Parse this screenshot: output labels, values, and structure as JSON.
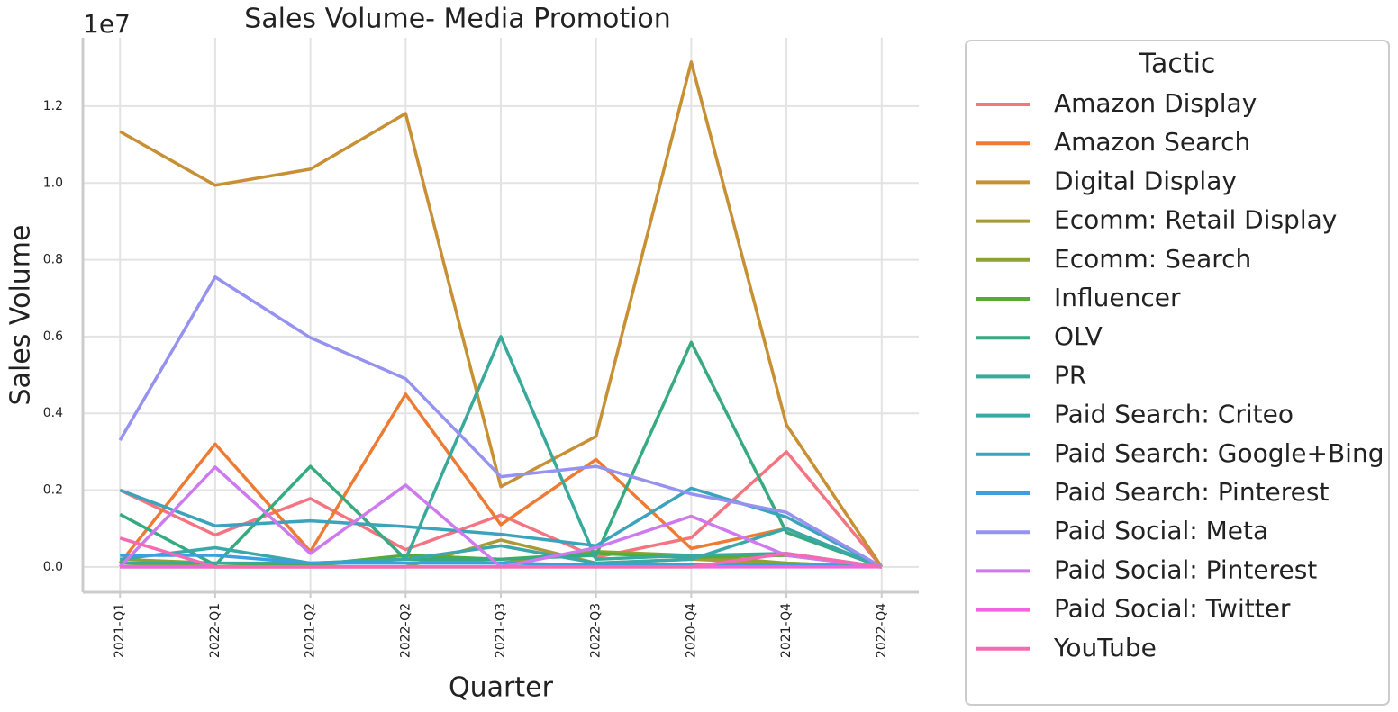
{
  "chart_data": {
    "type": "line",
    "title": "Sales Volume- Media Promotion",
    "x_label": "Quarter",
    "y_label": "Sales Volume",
    "y_offset_label": "1e7",
    "legend_title": "Tactic",
    "legend": "outside-right",
    "grid": true,
    "categories": [
      "2021-Q1",
      "2022-Q1",
      "2021-Q2",
      "2022-Q2",
      "2021-Q3",
      "2022-Q3",
      "2020-Q4",
      "2021-Q4",
      "2022-Q4"
    ],
    "ylim": [
      -0.066,
      1.378
    ],
    "yticks": [
      {
        "value": 0,
        "label": "0.0"
      },
      0.2,
      0.4,
      0.6,
      0.8,
      {
        "value": 1,
        "label": "1.0"
      },
      1.2
    ],
    "series": [
      {
        "name": "Amazon Display",
        "color": "#f37581",
        "values": [
          0.2,
          0.083,
          0.178,
          0.045,
          0.135,
          0.025,
          0.076,
          0.3,
          0.0
        ]
      },
      {
        "name": "Amazon Search",
        "color": "#ee7b33",
        "values": [
          0.01,
          0.32,
          0.04,
          0.45,
          0.11,
          0.28,
          0.048,
          0.1,
          0.0
        ]
      },
      {
        "name": "Digital Display",
        "color": "#c79035",
        "values": [
          1.134,
          0.994,
          1.036,
          1.181,
          0.209,
          0.34,
          1.315,
          0.37,
          0.0
        ]
      },
      {
        "name": "Ecomm: Retail Display",
        "color": "#a89b37",
        "values": [
          0.01,
          0.0,
          0.0,
          0.0,
          0.07,
          0.01,
          0.02,
          0.01,
          0.0
        ]
      },
      {
        "name": "Ecomm: Search",
        "color": "#8da233",
        "values": [
          0.02,
          0.01,
          0.005,
          0.02,
          0.01,
          0.04,
          0.03,
          0.01,
          0.0
        ]
      },
      {
        "name": "Influencer",
        "color": "#55ab37",
        "values": [
          0.0,
          0.0,
          0.005,
          0.03,
          0.02,
          0.035,
          0.025,
          0.03,
          0.0
        ]
      },
      {
        "name": "OLV",
        "color": "#36ab7f",
        "values": [
          0.137,
          0.005,
          0.262,
          0.02,
          0.02,
          0.03,
          0.585,
          0.09,
          0.0
        ]
      },
      {
        "name": "PR",
        "color": "#38a99b",
        "values": [
          0.01,
          0.01,
          0.01,
          0.02,
          0.6,
          0.02,
          0.03,
          0.035,
          0.0
        ]
      },
      {
        "name": "Paid Search: Criteo",
        "color": "#3aa8a9",
        "values": [
          0.02,
          0.05,
          0.01,
          0.02,
          0.055,
          0.01,
          0.02,
          0.1,
          0.0
        ]
      },
      {
        "name": "Paid Search: Google+Bing",
        "color": "#3ba3bc",
        "values": [
          0.2,
          0.107,
          0.12,
          0.105,
          0.085,
          0.055,
          0.205,
          0.13,
          0.0
        ]
      },
      {
        "name": "Paid Search: Pinterest",
        "color": "#3c9fe0",
        "values": [
          0.03,
          0.03,
          0.01,
          0.01,
          0.01,
          0.005,
          0.005,
          0.005,
          0.0
        ]
      },
      {
        "name": "Paid Social: Meta",
        "color": "#9692f0",
        "values": [
          0.33,
          0.755,
          0.597,
          0.49,
          0.235,
          0.262,
          0.19,
          0.142,
          0.0
        ]
      },
      {
        "name": "Paid Social: Pinterest",
        "color": "#cd7aef",
        "values": [
          0.0,
          0.26,
          0.035,
          0.213,
          0.0,
          0.05,
          0.132,
          0.03,
          0.0
        ]
      },
      {
        "name": "Paid Social: Twitter",
        "color": "#f065dd",
        "values": [
          0.0,
          0.0,
          0.0,
          0.0,
          0.0,
          0.0,
          0.0,
          0.0,
          0.0
        ]
      },
      {
        "name": "YouTube",
        "color": "#f46bb4",
        "values": [
          0.075,
          0.0,
          0.0,
          0.0,
          0.0,
          0.0,
          0.0,
          0.035,
          0.0
        ]
      }
    ]
  }
}
